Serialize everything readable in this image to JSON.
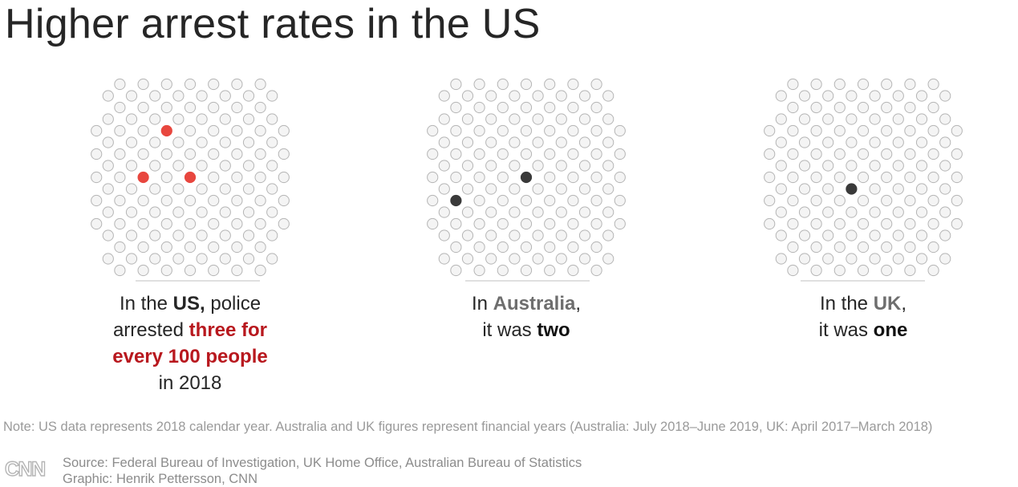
{
  "title": "Higher arrest rates in the US",
  "chart_data": [
    {
      "type": "unit-chart",
      "country": "US",
      "total_units": 100,
      "highlighted_units": 3,
      "highlight_color": "#e8473f",
      "caption": {
        "l1_pre": "In the ",
        "l1_bold": "US,",
        "l1_post": " police",
        "l2_pre": "arrested ",
        "l2_bold": "three for",
        "l3_bold": "every 100 people",
        "l4": "in 2018"
      }
    },
    {
      "type": "unit-chart",
      "country": "Australia",
      "total_units": 100,
      "highlighted_units": 2,
      "highlight_color": "#3a3a3a",
      "caption": {
        "l1_pre": "In ",
        "l1_bold": "Australia",
        "l1_post": ",",
        "l2_pre": "it was ",
        "l2_bold": "two"
      }
    },
    {
      "type": "unit-chart",
      "country": "UK",
      "total_units": 100,
      "highlighted_units": 1,
      "highlight_color": "#3a3a3a",
      "caption": {
        "l1_pre": "In the ",
        "l1_bold": "UK",
        "l1_post": ",",
        "l2_pre": "it was ",
        "l2_bold": "one"
      }
    }
  ],
  "note": "Note: US data represents 2018 calendar year. Australia and UK figures represent financial years (Australia: July 2018–June 2019, UK: April 2017–March 2018)",
  "source": "Source: Federal Bureau of Investigation, UK Home Office, Australian Bureau of Statistics",
  "credit": "Graphic: Henrik Pettersson, CNN",
  "logo_text": "CNN",
  "colors": {
    "dot_fill": "#f4f4f4",
    "dot_stroke": "#b5b5b5"
  }
}
